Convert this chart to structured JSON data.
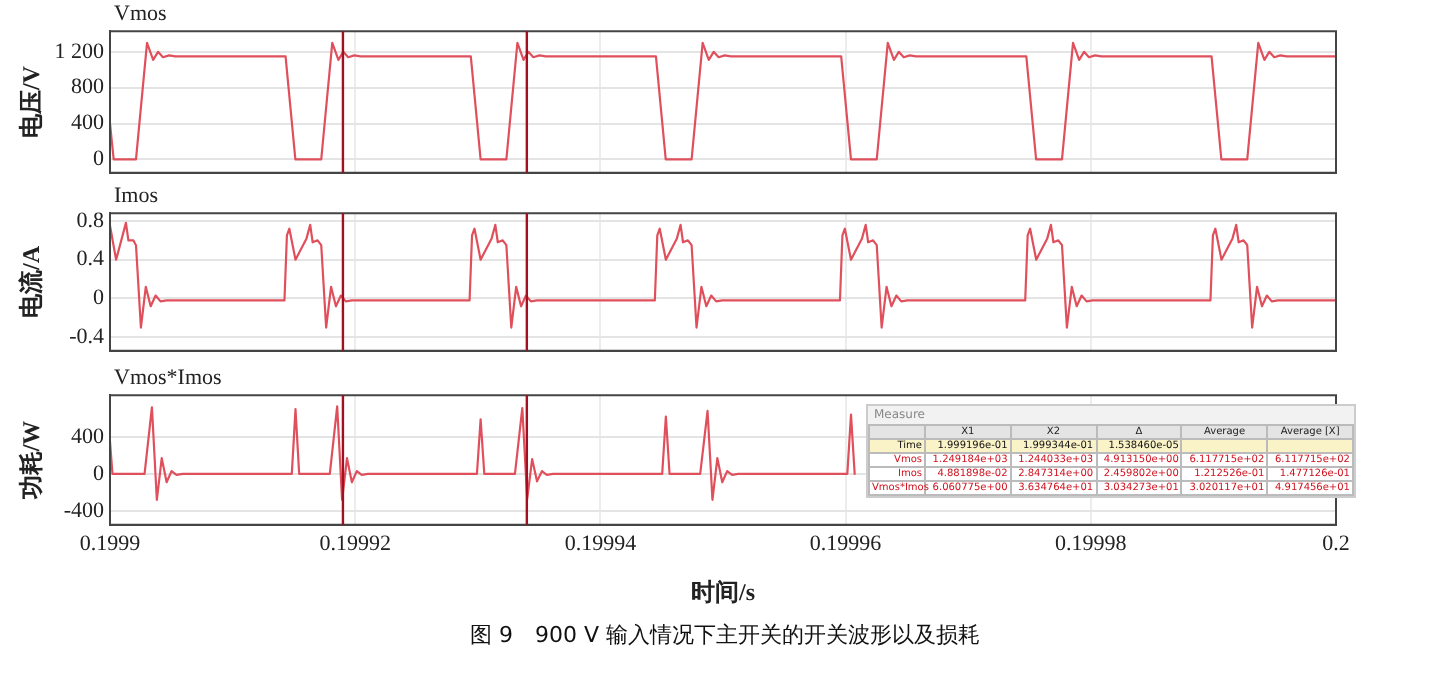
{
  "chart_data": [
    {
      "type": "line",
      "title": "Vmos",
      "ylabel": "电压/V",
      "xlim": [
        0.1999,
        0.2
      ],
      "xticks": [
        0.1999,
        0.19992,
        0.19994,
        0.19996,
        0.19998,
        0.2
      ],
      "ylim": [
        -150,
        1430
      ],
      "yticks": [
        0,
        400,
        800,
        {
          "value": 1200,
          "label": "1 200"
        }
      ],
      "grid": true,
      "tick_labels": "y",
      "ref_lines": [
        {
          "axis": "x",
          "value": 0.199919,
          "color": "#a01020"
        },
        {
          "axis": "x",
          "value": 0.199934,
          "color": "#a01020"
        }
      ],
      "series": [
        {
          "color": "#e0505c",
          "x": [
            0.1999,
            0.1999003,
            0.19990212,
            0.19990302,
            0.19990352,
            0.19990392,
            0.19990432,
            0.19990482,
            0.19990532,
            0.19991432,
            0.19991512,
            0.19991723,
            0.19991813,
            0.19991863,
            0.19991903,
            0.19991943,
            0.19991993,
            0.19992043,
            0.19992943,
            0.19993023,
            0.19993233,
            0.19993323,
            0.19993373,
            0.19993413,
            0.19993453,
            0.19993503,
            0.19993553,
            0.19994453,
            0.19994533,
            0.19994744,
            0.19994834,
            0.19994884,
            0.19994924,
            0.19994964,
            0.19995014,
            0.19995064,
            0.19995964,
            0.19996044,
            0.19996254,
            0.19996344,
            0.19996394,
            0.19996434,
            0.19996474,
            0.19996524,
            0.19996574,
            0.19997474,
            0.19997554,
            0.19997765,
            0.19997855,
            0.19997905,
            0.19997945,
            0.19997985,
            0.19998035,
            0.19998085,
            0.19998985,
            0.19999065,
            0.19999276,
            0.19999366,
            0.19999416,
            0.19999456,
            0.19999496,
            0.19999546,
            0.19999596,
            0.2
          ],
          "values": [
            400,
            0,
            0,
            1300,
            1110,
            1200,
            1140,
            1160,
            1150,
            1150,
            0,
            0,
            1300,
            1110,
            1200,
            1140,
            1160,
            1150,
            1150,
            0,
            0,
            1300,
            1110,
            1200,
            1140,
            1160,
            1150,
            1150,
            0,
            0,
            1300,
            1110,
            1200,
            1140,
            1160,
            1150,
            1150,
            0,
            0,
            1300,
            1110,
            1200,
            1140,
            1160,
            1150,
            1150,
            0,
            0,
            1300,
            1110,
            1200,
            1140,
            1160,
            1150,
            1150,
            0,
            0,
            1300,
            1110,
            1200,
            1140,
            1160,
            1150,
            1150
          ]
        }
      ]
    },
    {
      "type": "line",
      "title": "Imos",
      "ylabel": "电流/A",
      "xlim": [
        0.1999,
        0.2
      ],
      "xticks": [
        0.1999,
        0.19992,
        0.19994,
        0.19996,
        0.19998,
        0.2
      ],
      "ylim": [
        -0.54,
        0.88
      ],
      "yticks": [
        -0.4,
        0,
        0.4,
        0.8
      ],
      "grid": true,
      "tick_labels": "y",
      "ref_lines": [
        {
          "axis": "x",
          "value": 0.199919,
          "color": "#a01020"
        },
        {
          "axis": "x",
          "value": 0.199934,
          "color": "#a01020"
        }
      ],
      "series": [
        {
          "color": "#e0505c",
          "x": [
            0.1999,
            0.1999005,
            0.1999013,
            0.1999015,
            0.1999019,
            0.19990212,
            0.19990252,
            0.19990292,
            0.19990332,
            0.19990372,
            0.19990412,
            0.19990462,
            0.19991423,
            0.19991443,
            0.19991463,
            0.19991513,
            0.19991603,
            0.19991633,
            0.19991653,
            0.19991693,
            0.19991723,
            0.19991763,
            0.19991803,
            0.19991843,
            0.19991883,
            0.19991923,
            0.19991973,
            0.19992933,
            0.19992953,
            0.19992973,
            0.19993023,
            0.19993113,
            0.19993143,
            0.19993163,
            0.19993203,
            0.19993233,
            0.19993273,
            0.19993313,
            0.19993353,
            0.19993393,
            0.19993433,
            0.19993483,
            0.19994444,
            0.19994464,
            0.19994484,
            0.19994534,
            0.19994624,
            0.19994654,
            0.19994674,
            0.19994714,
            0.19994744,
            0.19994784,
            0.19994824,
            0.19994864,
            0.19994904,
            0.19994944,
            0.19994994,
            0.19995954,
            0.19995974,
            0.19995994,
            0.19996044,
            0.19996134,
            0.19996164,
            0.19996184,
            0.19996224,
            0.19996254,
            0.19996294,
            0.19996334,
            0.19996374,
            0.19996414,
            0.19996454,
            0.19996504,
            0.19997465,
            0.19997485,
            0.19997505,
            0.19997555,
            0.19997645,
            0.19997675,
            0.19997695,
            0.19997735,
            0.19997765,
            0.19997805,
            0.19997845,
            0.19997885,
            0.19997925,
            0.19997965,
            0.19998015,
            0.19998976,
            0.19998996,
            0.19999016,
            0.19999066,
            0.19999156,
            0.19999186,
            0.19999206,
            0.19999246,
            0.19999276,
            0.19999316,
            0.19999356,
            0.19999396,
            0.19999436,
            0.19999476,
            0.19999526,
            0.2
          ],
          "values": [
            0.75,
            0.4,
            0.78,
            0.6,
            0.6,
            0.55,
            -0.3,
            0.12,
            -0.08,
            0.03,
            -0.03,
            -0.02,
            -0.02,
            0.65,
            0.72,
            0.4,
            0.62,
            0.76,
            0.58,
            0.6,
            0.55,
            -0.3,
            0.12,
            -0.08,
            0.03,
            -0.03,
            -0.02,
            -0.02,
            0.65,
            0.72,
            0.4,
            0.62,
            0.76,
            0.58,
            0.6,
            0.55,
            -0.3,
            0.12,
            -0.08,
            0.03,
            -0.03,
            -0.02,
            -0.02,
            0.65,
            0.72,
            0.4,
            0.62,
            0.76,
            0.58,
            0.6,
            0.55,
            -0.3,
            0.12,
            -0.08,
            0.03,
            -0.03,
            -0.02,
            -0.02,
            0.65,
            0.72,
            0.4,
            0.62,
            0.76,
            0.58,
            0.6,
            0.55,
            -0.3,
            0.12,
            -0.08,
            0.03,
            -0.03,
            -0.02,
            -0.02,
            0.65,
            0.72,
            0.4,
            0.62,
            0.76,
            0.58,
            0.6,
            0.55,
            -0.3,
            0.12,
            -0.08,
            0.03,
            -0.03,
            -0.02,
            -0.02,
            0.65,
            0.72,
            0.4,
            0.62,
            0.76,
            0.58,
            0.6,
            0.55,
            -0.3,
            0.12,
            -0.08,
            0.03,
            -0.03,
            -0.02,
            -0.02
          ]
        }
      ]
    },
    {
      "type": "line",
      "title": "Vmos*Imos",
      "ylabel": "功耗/W",
      "xlabel": "时间/s",
      "xlim": [
        0.1999,
        0.2
      ],
      "xticks": [
        0.1999,
        0.19992,
        0.19994,
        0.19996,
        0.19998,
        0.2
      ],
      "ylim": [
        -550,
        850
      ],
      "yticks": [
        -400,
        0,
        400
      ],
      "grid": true,
      "ref_lines": [
        {
          "axis": "x",
          "value": 0.199919,
          "color": "#a01020"
        },
        {
          "axis": "x",
          "value": 0.199934,
          "color": "#a01020"
        }
      ],
      "annotations": [
        "图 9　900 V 输入情况下主开关的开关波形以及损耗"
      ],
      "series": [
        {
          "color": "#e0505c",
          "x": [
            0.1999,
            0.1999002,
            0.19990282,
            0.19990342,
            0.19990382,
            0.19990422,
            0.19990462,
            0.19990502,
            0.19990542,
            0.19990592,
            0.19991483,
            0.19991513,
            0.19991543,
            0.19991793,
            0.19991853,
            0.19991893,
            0.19991933,
            0.19991973,
            0.19992013,
            0.19992053,
            0.19992103,
            0.19992993,
            0.19993023,
            0.19993053,
            0.19993303,
            0.19993363,
            0.19993403,
            0.19993443,
            0.19993483,
            0.19993523,
            0.19993563,
            0.19993613,
            0.19994504,
            0.19994534,
            0.19994564,
            0.19994814,
            0.19994874,
            0.19994914,
            0.19994954,
            0.19994994,
            0.19995034,
            0.19995074,
            0.19995124,
            0.19996014,
            0.19996044,
            0.19996074
          ],
          "values": [
            350,
            0,
            0,
            720,
            -280,
            170,
            -90,
            30,
            -10,
            0,
            0,
            700,
            0,
            0,
            730,
            -280,
            170,
            -90,
            30,
            -10,
            0,
            0,
            590,
            0,
            0,
            710,
            -270,
            160,
            -80,
            30,
            -10,
            0,
            0,
            620,
            0,
            0,
            680,
            -280,
            170,
            -90,
            30,
            -10,
            0,
            0,
            640,
            0
          ]
        }
      ]
    },
    {
      "type": "other",
      "title": "Measure",
      "categories": [
        "X1",
        "X2",
        "Δ",
        "Average",
        "Average [X]"
      ],
      "y_categories": [
        "Time",
        "Vmos",
        "Imos",
        "Vmos*Imos"
      ],
      "cell_labels": [
        [
          "1.999196e-01",
          "1.999344e-01",
          "1.538460e-05",
          null,
          null
        ],
        [
          "1.249184e+03",
          "1.244033e+03",
          "4.913150e+00",
          "6.117715e+02",
          "6.117715e+02"
        ],
        [
          "4.881898e-02",
          "2.847314e+00",
          "2.459802e+00",
          "1.212526e-01",
          "1.477126e-01"
        ],
        [
          "6.060775e+00",
          "3.634764e+01",
          "3.034273e+01",
          "3.020117e+01",
          "4.917456e+01"
        ]
      ]
    }
  ]
}
